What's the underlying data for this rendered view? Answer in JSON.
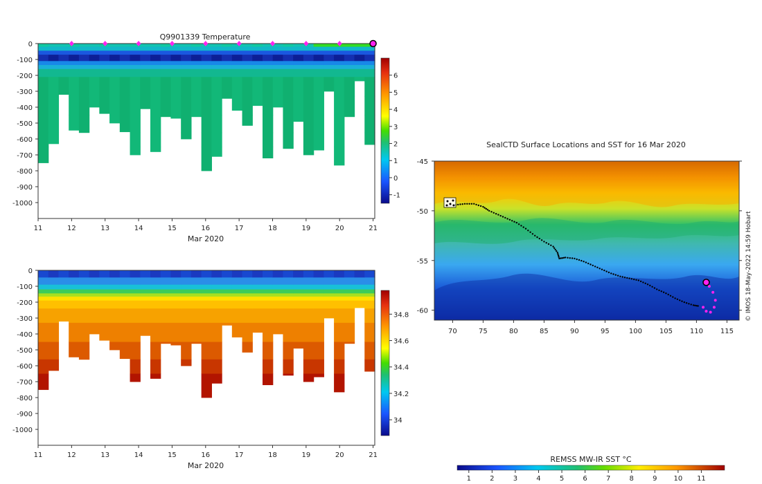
{
  "chart_data": [
    {
      "type": "heatmap",
      "title": "Q9901339  Temperature",
      "xlabel": "Mar 2020",
      "ylabel": "",
      "x_ticks": [
        "11",
        "12",
        "13",
        "14",
        "15",
        "16",
        "17",
        "18",
        "19",
        "20",
        "21"
      ],
      "y_ticks": [
        "0",
        "-100",
        "-200",
        "-300",
        "-400",
        "-500",
        "-600",
        "-700",
        "-800",
        "-900",
        "-1000"
      ],
      "xlim": [
        11,
        21.05
      ],
      "ylim": [
        -1100,
        0
      ],
      "colorbar": {
        "ticks": [
          "-1",
          "0",
          "1",
          "2",
          "3",
          "4",
          "5",
          "6"
        ],
        "range": [
          -1.5,
          7
        ]
      },
      "profile_marker_days": [
        12,
        13,
        14,
        15,
        16,
        17,
        18,
        19,
        20
      ],
      "current_marker_day": 21,
      "profile_bottom_depths": [
        -750,
        -630,
        -320,
        -545,
        -560,
        -400,
        -440,
        -500,
        -555,
        -700,
        -410,
        -680,
        -460,
        -470,
        -600,
        -460,
        -800,
        -710,
        -345,
        -420,
        -515,
        -390,
        -720,
        -400,
        -660,
        -490,
        -700,
        -670,
        -300,
        -765,
        -460,
        -235,
        -635
      ]
    },
    {
      "type": "heatmap",
      "title": "",
      "xlabel": "Mar 2020",
      "ylabel": "",
      "x_ticks": [
        "11",
        "12",
        "13",
        "14",
        "15",
        "16",
        "17",
        "18",
        "19",
        "20",
        "21"
      ],
      "y_ticks": [
        "0",
        "-100",
        "-200",
        "-300",
        "-400",
        "-500",
        "-600",
        "-700",
        "-800",
        "-900",
        "-1000"
      ],
      "xlim": [
        11,
        21.05
      ],
      "ylim": [
        -1100,
        0
      ],
      "colorbar": {
        "ticks": [
          "34",
          "34.2",
          "34.4",
          "34.6",
          "34.8"
        ],
        "range": [
          33.88,
          34.98
        ]
      }
    },
    {
      "type": "map",
      "title": "SealCTD Surface Locations and SST for 16 Mar 2020",
      "x_ticks": [
        "70",
        "75",
        "80",
        "85",
        "90",
        "95",
        "100",
        "105",
        "110",
        "115"
      ],
      "y_ticks": [
        "-45",
        "-50",
        "-55",
        "-60"
      ],
      "xlim": [
        67,
        117
      ],
      "ylim": [
        -61,
        -45
      ],
      "track_points": [
        [
          69.3,
          -49.5
        ],
        [
          70.5,
          -49.4
        ],
        [
          72,
          -49.3
        ],
        [
          73.5,
          -49.3
        ],
        [
          75,
          -49.6
        ],
        [
          76,
          -50
        ],
        [
          77.5,
          -50.4
        ],
        [
          79,
          -50.8
        ],
        [
          80.5,
          -51.2
        ],
        [
          82,
          -51.8
        ],
        [
          83.5,
          -52.5
        ],
        [
          85,
          -53.1
        ],
        [
          86.5,
          -53.6
        ],
        [
          87.2,
          -54.2
        ],
        [
          87.5,
          -54.8
        ],
        [
          88.5,
          -54.7
        ],
        [
          90,
          -54.8
        ],
        [
          91.5,
          -55.1
        ],
        [
          93,
          -55.5
        ],
        [
          94.5,
          -55.9
        ],
        [
          96,
          -56.3
        ],
        [
          97.5,
          -56.6
        ],
        [
          99,
          -56.8
        ],
        [
          100.5,
          -57
        ],
        [
          102,
          -57.4
        ],
        [
          103.5,
          -57.9
        ],
        [
          105,
          -58.3
        ],
        [
          106.5,
          -58.8
        ],
        [
          108,
          -59.2
        ],
        [
          109.5,
          -59.5
        ],
        [
          110.5,
          -59.6
        ]
      ],
      "recent_points": [
        [
          111.1,
          -59.7
        ],
        [
          111.6,
          -60.1
        ],
        [
          112.3,
          -60.2
        ],
        [
          112.9,
          -59.7
        ],
        [
          113.1,
          -59
        ],
        [
          112.7,
          -58.2
        ],
        [
          112.1,
          -57.6
        ]
      ],
      "current_position": [
        111.6,
        -57.2
      ],
      "colorbar": {
        "label": "REMSS MW-IR SST °C",
        "ticks": [
          "1",
          "2",
          "3",
          "4",
          "5",
          "6",
          "7",
          "8",
          "9",
          "10",
          "11"
        ],
        "range": [
          0.5,
          12
        ]
      },
      "credit": "© IMOS 18-May-2022 14:59 Hobart"
    }
  ]
}
